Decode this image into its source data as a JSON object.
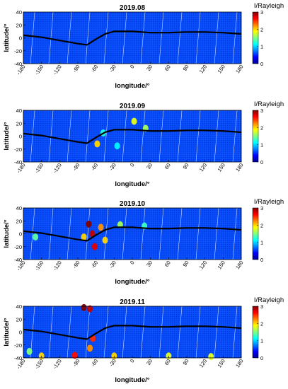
{
  "figure": {
    "colorbar_stops": [
      "#00008f",
      "#0000ff",
      "#0080ff",
      "#00ffff",
      "#80ff80",
      "#ffff00",
      "#ff8000",
      "#ff0000",
      "#800000"
    ],
    "equator_line_color": "#000000",
    "swath_line_color": "#ffffff"
  },
  "chart_data": [
    {
      "type": "heatmap",
      "title": "2019.08",
      "xlabel": "longitude/°",
      "ylabel": "latitude/°",
      "colorbar_label": "I/Rayleigh",
      "x_ticks": [
        "-180",
        "-150",
        "-120",
        "-90",
        "-60",
        "-30",
        "0",
        "30",
        "60",
        "90",
        "120",
        "150",
        "180"
      ],
      "y_ticks": [
        "40",
        "20",
        "0",
        "-20",
        "-40"
      ],
      "colorbar_ticks": [
        "3",
        "2",
        "1",
        "0"
      ],
      "xlim": [
        -180,
        180
      ],
      "ylim": [
        -40,
        40
      ],
      "clim": [
        0,
        3
      ],
      "magnetic_equator": [
        [
          -180,
          4
        ],
        [
          -150,
          1
        ],
        [
          -120,
          -4
        ],
        [
          -90,
          -9
        ],
        [
          -75,
          -11
        ],
        [
          -60,
          -2
        ],
        [
          -45,
          6
        ],
        [
          -30,
          10
        ],
        [
          0,
          10
        ],
        [
          30,
          8
        ],
        [
          60,
          8
        ],
        [
          90,
          9
        ],
        [
          120,
          9
        ],
        [
          150,
          8
        ],
        [
          180,
          6
        ]
      ],
      "hotspots": []
    },
    {
      "type": "heatmap",
      "title": "2019.09",
      "xlabel": "longitude/°",
      "ylabel": "latitude/°",
      "colorbar_label": "I/Rayleigh",
      "x_ticks": [
        "-180",
        "-150",
        "-120",
        "-90",
        "-60",
        "-30",
        "0",
        "30",
        "60",
        "90",
        "120",
        "150",
        "180"
      ],
      "y_ticks": [
        "40",
        "20",
        "0",
        "-20",
        "-40"
      ],
      "colorbar_ticks": [
        "3",
        "2",
        "1",
        "0"
      ],
      "xlim": [
        -180,
        180
      ],
      "ylim": [
        -40,
        40
      ],
      "clim": [
        0,
        3
      ],
      "magnetic_equator": [
        [
          -180,
          4
        ],
        [
          -150,
          1
        ],
        [
          -120,
          -4
        ],
        [
          -90,
          -9
        ],
        [
          -75,
          -11
        ],
        [
          -60,
          -2
        ],
        [
          -45,
          6
        ],
        [
          -30,
          10
        ],
        [
          0,
          10
        ],
        [
          30,
          8
        ],
        [
          60,
          8
        ],
        [
          90,
          9
        ],
        [
          120,
          9
        ],
        [
          150,
          8
        ],
        [
          180,
          6
        ]
      ],
      "hotspots": [
        {
          "lon": -58,
          "lat": -12,
          "value": 2.0
        },
        {
          "lon": -48,
          "lat": 5,
          "value": 1.2
        },
        {
          "lon": 3,
          "lat": 23,
          "value": 1.8
        },
        {
          "lon": 22,
          "lat": 12,
          "value": 1.6
        },
        {
          "lon": -25,
          "lat": -15,
          "value": 1.1
        }
      ]
    },
    {
      "type": "heatmap",
      "title": "2019.10",
      "xlabel": "longitude/°",
      "ylabel": "latitude/°",
      "colorbar_label": "I/Rayleigh",
      "x_ticks": [
        "-180",
        "-150",
        "-120",
        "-90",
        "-60",
        "-30",
        "0",
        "30",
        "60",
        "90",
        "120",
        "150",
        "180"
      ],
      "y_ticks": [
        "40",
        "20",
        "0",
        "-20",
        "-40"
      ],
      "colorbar_ticks": [
        "3",
        "2",
        "1",
        "0"
      ],
      "xlim": [
        -180,
        180
      ],
      "ylim": [
        -40,
        40
      ],
      "clim": [
        0,
        3
      ],
      "magnetic_equator": [
        [
          -180,
          4
        ],
        [
          -150,
          1
        ],
        [
          -120,
          -4
        ],
        [
          -90,
          -9
        ],
        [
          -75,
          -11
        ],
        [
          -60,
          -2
        ],
        [
          -45,
          6
        ],
        [
          -30,
          10
        ],
        [
          0,
          10
        ],
        [
          30,
          8
        ],
        [
          60,
          8
        ],
        [
          90,
          9
        ],
        [
          120,
          9
        ],
        [
          150,
          8
        ],
        [
          180,
          6
        ]
      ],
      "hotspots": [
        {
          "lon": -72,
          "lat": 15,
          "value": 3.0
        },
        {
          "lon": -66,
          "lat": 0,
          "value": 2.8
        },
        {
          "lon": -62,
          "lat": -20,
          "value": 2.7
        },
        {
          "lon": -52,
          "lat": 10,
          "value": 2.2
        },
        {
          "lon": -45,
          "lat": -10,
          "value": 2.0
        },
        {
          "lon": -80,
          "lat": -5,
          "value": 2.0
        },
        {
          "lon": -160,
          "lat": -5,
          "value": 1.4
        },
        {
          "lon": -20,
          "lat": 14,
          "value": 1.6
        },
        {
          "lon": 20,
          "lat": 12,
          "value": 1.3
        }
      ]
    },
    {
      "type": "heatmap",
      "title": "2019.11",
      "xlabel": "longitude/°",
      "ylabel": "latitude/°",
      "colorbar_label": "I/Rayleigh",
      "x_ticks": [
        "-180",
        "-150",
        "-120",
        "-90",
        "-60",
        "-30",
        "0",
        "30",
        "60",
        "90",
        "120",
        "150",
        "180"
      ],
      "y_ticks": [
        "40",
        "20",
        "0",
        "-20",
        "-40"
      ],
      "colorbar_ticks": [
        "3",
        "2",
        "1",
        "0"
      ],
      "xlim": [
        -180,
        180
      ],
      "ylim": [
        -40,
        40
      ],
      "clim": [
        0,
        3
      ],
      "magnetic_equator": [
        [
          -180,
          4
        ],
        [
          -150,
          1
        ],
        [
          -120,
          -4
        ],
        [
          -90,
          -9
        ],
        [
          -75,
          -11
        ],
        [
          -60,
          -2
        ],
        [
          -45,
          6
        ],
        [
          -30,
          10
        ],
        [
          0,
          10
        ],
        [
          30,
          8
        ],
        [
          60,
          8
        ],
        [
          90,
          9
        ],
        [
          120,
          9
        ],
        [
          150,
          8
        ],
        [
          180,
          6
        ]
      ],
      "hotspots": [
        {
          "lon": -80,
          "lat": 38,
          "value": 3.0
        },
        {
          "lon": -70,
          "lat": 36,
          "value": 2.8
        },
        {
          "lon": -65,
          "lat": -10,
          "value": 2.5
        },
        {
          "lon": -70,
          "lat": -25,
          "value": 2.2
        },
        {
          "lon": -95,
          "lat": -36,
          "value": 2.6
        },
        {
          "lon": -150,
          "lat": -37,
          "value": 2.0
        },
        {
          "lon": -30,
          "lat": -37,
          "value": 2.0
        },
        {
          "lon": 60,
          "lat": -37,
          "value": 1.8
        },
        {
          "lon": 130,
          "lat": -38,
          "value": 1.8
        },
        {
          "lon": -170,
          "lat": -30,
          "value": 1.5
        }
      ]
    }
  ]
}
